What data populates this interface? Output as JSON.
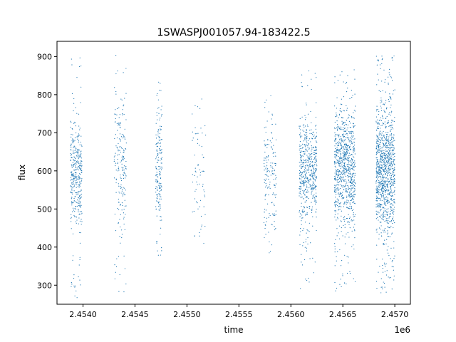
{
  "chart_data": {
    "type": "scatter",
    "title": "1SWASPJ001057.94-183422.5",
    "xlabel": "time",
    "ylabel": "flux",
    "x_offset_label": "1e6",
    "xlim": [
      2453750,
      2457150
    ],
    "ylim": [
      250,
      940
    ],
    "xticks": [
      2.454,
      2.4545,
      2.455,
      2.4555,
      2.456,
      2.4565,
      2.457
    ],
    "xtick_labels": [
      "2.4540",
      "2.4545",
      "2.4550",
      "2.4555",
      "2.4560",
      "2.4565",
      "2.4570"
    ],
    "yticks": [
      300,
      400,
      500,
      600,
      700,
      800,
      900
    ],
    "ytick_labels": [
      "300",
      "400",
      "500",
      "600",
      "700",
      "800",
      "900"
    ],
    "grid": false,
    "marker_color": "#1f77b4",
    "series": [
      {
        "clusters": [
          {
            "x": [
              2453880,
              2453990
            ],
            "y": [
              250,
              900
            ],
            "center": 590,
            "spread": 60,
            "count": 380
          },
          {
            "x": [
              2454300,
              2454420
            ],
            "y": [
              280,
              910
            ],
            "center": 600,
            "spread": 90,
            "count": 200
          },
          {
            "x": [
              2454700,
              2454760
            ],
            "y": [
              350,
              850
            ],
            "center": 610,
            "spread": 70,
            "count": 180
          },
          {
            "x": [
              2455050,
              2455180
            ],
            "y": [
              295,
              790
            ],
            "center": 610,
            "spread": 90,
            "count": 70
          },
          {
            "x": [
              2455740,
              2455860
            ],
            "y": [
              385,
              830
            ],
            "center": 580,
            "spread": 80,
            "count": 160
          },
          {
            "x": [
              2456080,
              2456250
            ],
            "y": [
              285,
              870
            ],
            "center": 600,
            "spread": 60,
            "count": 560
          },
          {
            "x": [
              2456420,
              2456620
            ],
            "y": [
              285,
              870
            ],
            "center": 610,
            "spread": 70,
            "count": 900
          },
          {
            "x": [
              2456820,
              2457000
            ],
            "y": [
              280,
              905
            ],
            "center": 600,
            "spread": 75,
            "count": 1100
          }
        ]
      }
    ]
  }
}
